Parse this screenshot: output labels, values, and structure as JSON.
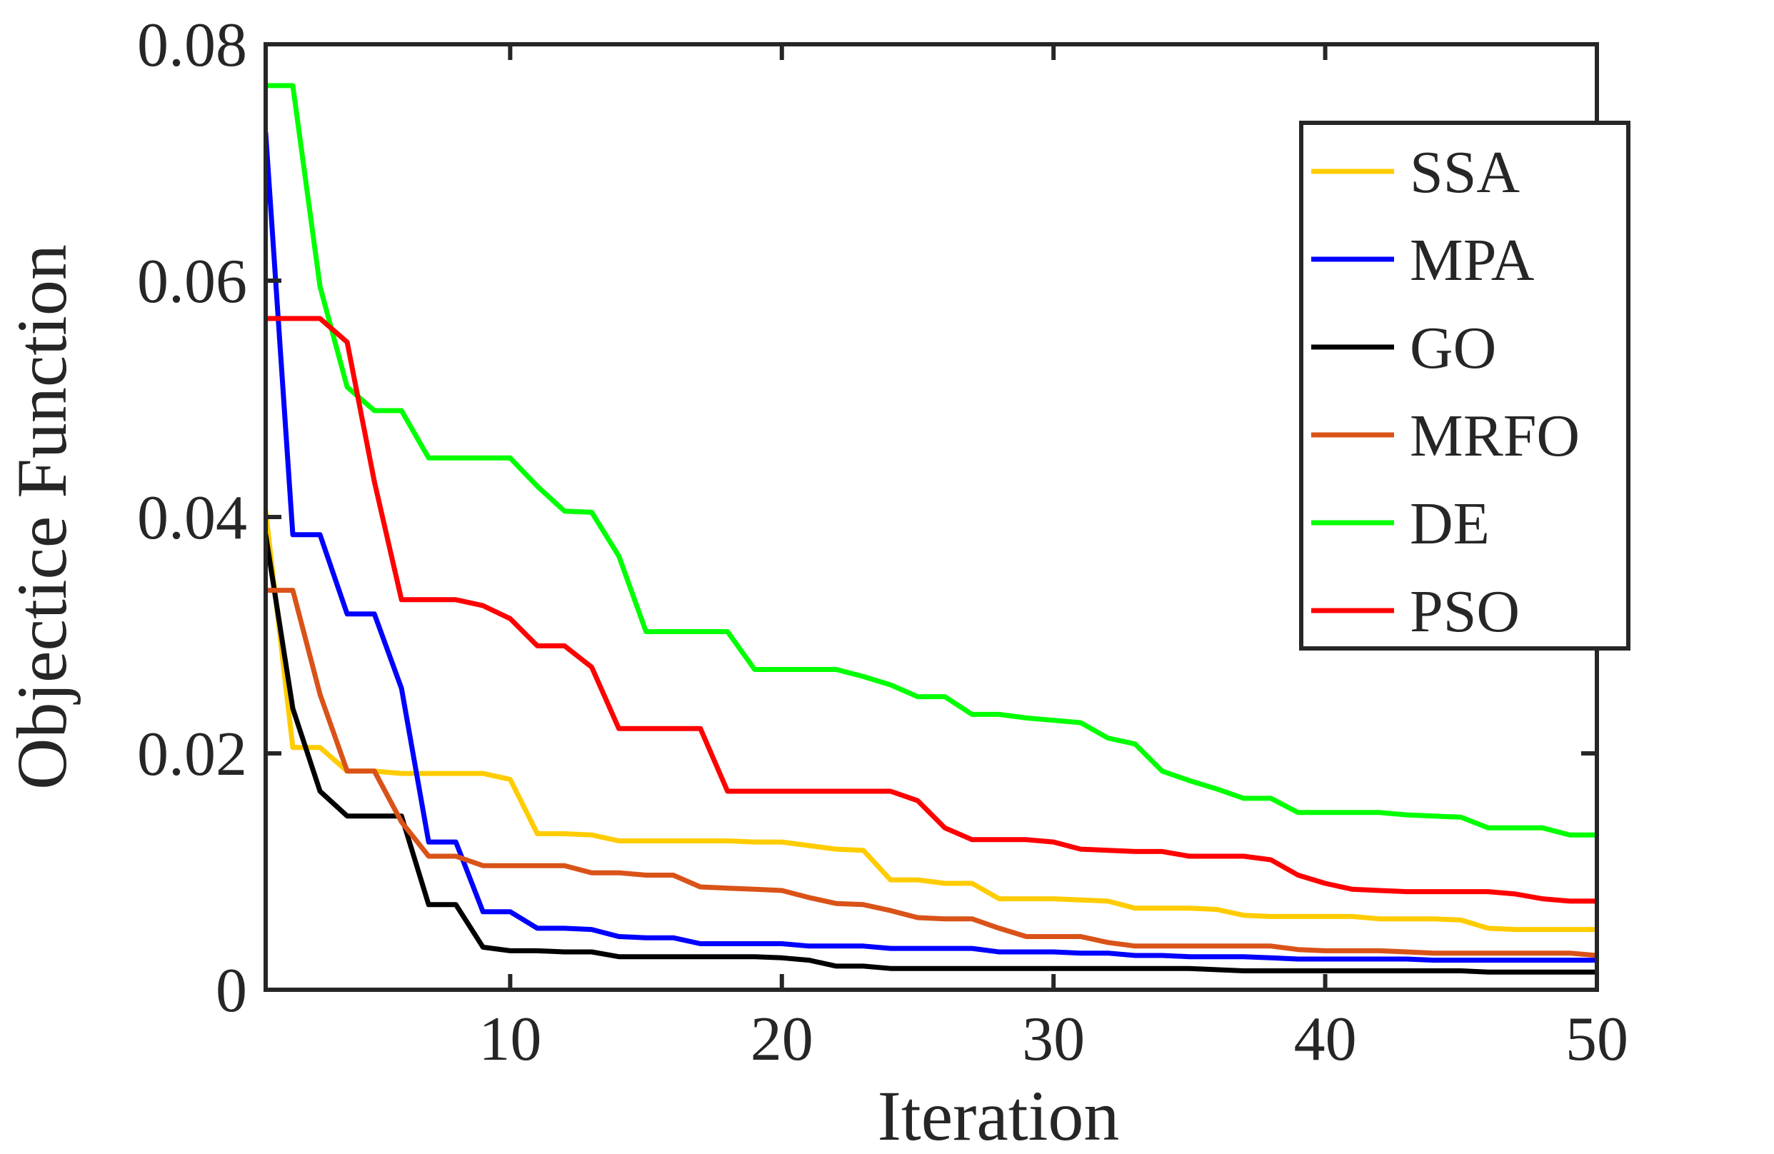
{
  "chart_data": {
    "type": "line",
    "title": "",
    "xlabel": "Iteration",
    "ylabel": "Objectice Function",
    "xlim": [
      1,
      50
    ],
    "ylim": [
      0,
      0.08
    ],
    "xticks": [
      10,
      20,
      30,
      40,
      50
    ],
    "xtick_labels": [
      "10",
      "20",
      "30",
      "40",
      "50"
    ],
    "yticks": [
      0,
      0.02,
      0.04,
      0.06,
      0.08
    ],
    "ytick_labels": [
      "0",
      "0.02",
      "0.04",
      "0.06",
      "0.08"
    ],
    "grid": false,
    "legend_position": "top-right",
    "x": [
      1,
      2,
      3,
      4,
      5,
      6,
      7,
      8,
      9,
      10,
      11,
      12,
      13,
      14,
      15,
      16,
      17,
      18,
      19,
      20,
      21,
      22,
      23,
      24,
      25,
      26,
      27,
      28,
      29,
      30,
      31,
      32,
      33,
      34,
      35,
      36,
      37,
      38,
      39,
      40,
      41,
      42,
      43,
      44,
      45,
      46,
      47,
      48,
      49,
      50
    ],
    "series": [
      {
        "name": "SSA",
        "color": "#FFCC00",
        "values": [
          0.0405,
          0.0205,
          0.0205,
          0.0185,
          0.0185,
          0.0183,
          0.0183,
          0.0183,
          0.0183,
          0.0178,
          0.0132,
          0.0132,
          0.0131,
          0.0126,
          0.0126,
          0.0126,
          0.0126,
          0.0126,
          0.0125,
          0.0125,
          0.0122,
          0.0119,
          0.0118,
          0.0093,
          0.0093,
          0.009,
          0.009,
          0.0077,
          0.0077,
          0.0077,
          0.0076,
          0.0075,
          0.0069,
          0.0069,
          0.0069,
          0.0068,
          0.0063,
          0.0062,
          0.0062,
          0.0062,
          0.0062,
          0.006,
          0.006,
          0.006,
          0.0059,
          0.0052,
          0.0051,
          0.0051,
          0.0051,
          0.0051
        ]
      },
      {
        "name": "MPA",
        "color": "#0000FF",
        "values": [
          0.0725,
          0.0385,
          0.0385,
          0.0318,
          0.0318,
          0.0255,
          0.0125,
          0.0125,
          0.0066,
          0.0066,
          0.0052,
          0.0052,
          0.0051,
          0.0045,
          0.0044,
          0.0044,
          0.0039,
          0.0039,
          0.0039,
          0.0039,
          0.0037,
          0.0037,
          0.0037,
          0.0035,
          0.0035,
          0.0035,
          0.0035,
          0.0032,
          0.0032,
          0.0032,
          0.0031,
          0.0031,
          0.0029,
          0.0029,
          0.0028,
          0.0028,
          0.0028,
          0.0027,
          0.0026,
          0.0026,
          0.0026,
          0.0026,
          0.0026,
          0.0025,
          0.0025,
          0.0025,
          0.0025,
          0.0025,
          0.0025,
          0.0025
        ]
      },
      {
        "name": "GO",
        "color": "#000000",
        "values": [
          0.0385,
          0.0238,
          0.0168,
          0.0147,
          0.0147,
          0.0147,
          0.0072,
          0.0072,
          0.0036,
          0.0033,
          0.0033,
          0.0032,
          0.0032,
          0.0028,
          0.0028,
          0.0028,
          0.0028,
          0.0028,
          0.0028,
          0.0027,
          0.0025,
          0.002,
          0.002,
          0.0018,
          0.0018,
          0.0018,
          0.0018,
          0.0018,
          0.0018,
          0.0018,
          0.0018,
          0.0018,
          0.0018,
          0.0018,
          0.0018,
          0.0017,
          0.0016,
          0.0016,
          0.0016,
          0.0016,
          0.0016,
          0.0016,
          0.0016,
          0.0016,
          0.0016,
          0.0015,
          0.0015,
          0.0015,
          0.0015,
          0.0015
        ]
      },
      {
        "name": "MRFO",
        "color": "#D95319",
        "values": [
          0.0338,
          0.0338,
          0.025,
          0.0185,
          0.0185,
          0.0142,
          0.0113,
          0.0113,
          0.0105,
          0.0105,
          0.0105,
          0.0105,
          0.0099,
          0.0099,
          0.0097,
          0.0097,
          0.0087,
          0.0086,
          0.0085,
          0.0084,
          0.0078,
          0.0073,
          0.0072,
          0.0067,
          0.0061,
          0.006,
          0.006,
          0.0052,
          0.0045,
          0.0045,
          0.0045,
          0.004,
          0.0037,
          0.0037,
          0.0037,
          0.0037,
          0.0037,
          0.0037,
          0.0034,
          0.0033,
          0.0033,
          0.0033,
          0.0032,
          0.0031,
          0.0031,
          0.0031,
          0.0031,
          0.0031,
          0.0031,
          0.0029
        ]
      },
      {
        "name": "DE",
        "color": "#00FF00",
        "values": [
          0.0765,
          0.0765,
          0.0595,
          0.051,
          0.049,
          0.049,
          0.045,
          0.045,
          0.045,
          0.045,
          0.0426,
          0.0405,
          0.0404,
          0.0367,
          0.0303,
          0.0303,
          0.0303,
          0.0303,
          0.0271,
          0.0271,
          0.0271,
          0.0271,
          0.0265,
          0.0258,
          0.0248,
          0.0248,
          0.0233,
          0.0233,
          0.023,
          0.0228,
          0.0226,
          0.0213,
          0.0208,
          0.0185,
          0.0177,
          0.017,
          0.0162,
          0.0162,
          0.015,
          0.015,
          0.015,
          0.015,
          0.0148,
          0.0147,
          0.0146,
          0.0137,
          0.0137,
          0.0137,
          0.0131,
          0.0131
        ]
      },
      {
        "name": "PSO",
        "color": "#FF0000",
        "values": [
          0.0568,
          0.0568,
          0.0568,
          0.0548,
          0.043,
          0.033,
          0.033,
          0.033,
          0.0325,
          0.0314,
          0.0291,
          0.0291,
          0.0273,
          0.0221,
          0.0221,
          0.0221,
          0.0221,
          0.0168,
          0.0168,
          0.0168,
          0.0168,
          0.0168,
          0.0168,
          0.0168,
          0.016,
          0.0137,
          0.0127,
          0.0127,
          0.0127,
          0.0125,
          0.0119,
          0.0118,
          0.0117,
          0.0117,
          0.0113,
          0.0113,
          0.0113,
          0.011,
          0.0097,
          0.009,
          0.0085,
          0.0084,
          0.0083,
          0.0083,
          0.0083,
          0.0083,
          0.0081,
          0.0077,
          0.0075,
          0.0075
        ]
      }
    ]
  }
}
